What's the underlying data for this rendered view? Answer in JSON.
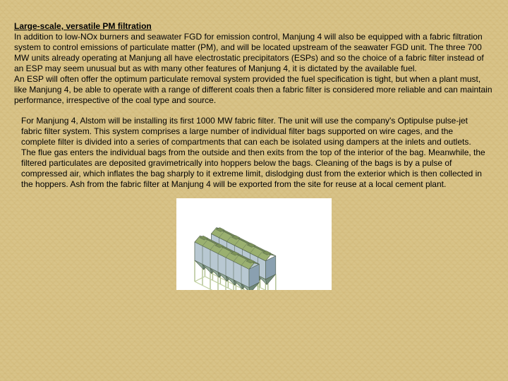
{
  "title": "Large-scale, versatile PM filtration",
  "para1": "In addition to low-NOx burners and seawater FGD for emission control, Manjung 4 will also be equipped with a fabric filtration system to control emissions of particulate matter (PM), and will be located upstream of the seawater FGD unit. The three 700 MW units already operating at Manjung all have electrostatic precipitators (ESPs) and so the choice of a fabric filter instead of an ESP may seem unusual but as with many other features of Manjung 4, it is dictated by the available fuel.",
  "para1b": "An ESP will often offer the optimum particulate removal system provided the fuel specification is tight, but when a plant must, like Manjung 4, be able to operate with a range of different coals then a fabric filter is considered more reliable and can maintain performance, irrespective of the coal type and source.",
  "para2": "For Manjung 4, Alstom will be installing its first 1000 MW fabric filter. The unit will use the company's Optipulse pulse-jet fabric filter system. This system comprises a large number of individual filter bags supported on wire cages, and the complete filter is divided into a series of compartments that can each be isolated using dampers at the inlets and outlets.",
  "para2b": "The flue gas enters the individual bags from the outside and then exits from the top of the interior of the bag. Meanwhile, the filtered particulates are deposited gravimetrically into hoppers below the bags. Cleaning of the bags is by a pulse of compressed air, which inflates the bag sharply to it extreme limit, dislodging dust from the exterior which is then collected in the hoppers. Ash from the fabric filter at Manjung 4 will be exported from the site for reuse at a local cement plant.",
  "figure": {
    "bg": "#ffffff",
    "wall_side": "#8aa0b0",
    "wall_front": "#b8c8d2",
    "roof": "#9ab070",
    "roof_dark": "#7a9058",
    "hopper": "#90a898",
    "hopper_dark": "#708878",
    "frame": "#b0c090",
    "rail": "#c0d0a0",
    "outline": "#50604c"
  }
}
